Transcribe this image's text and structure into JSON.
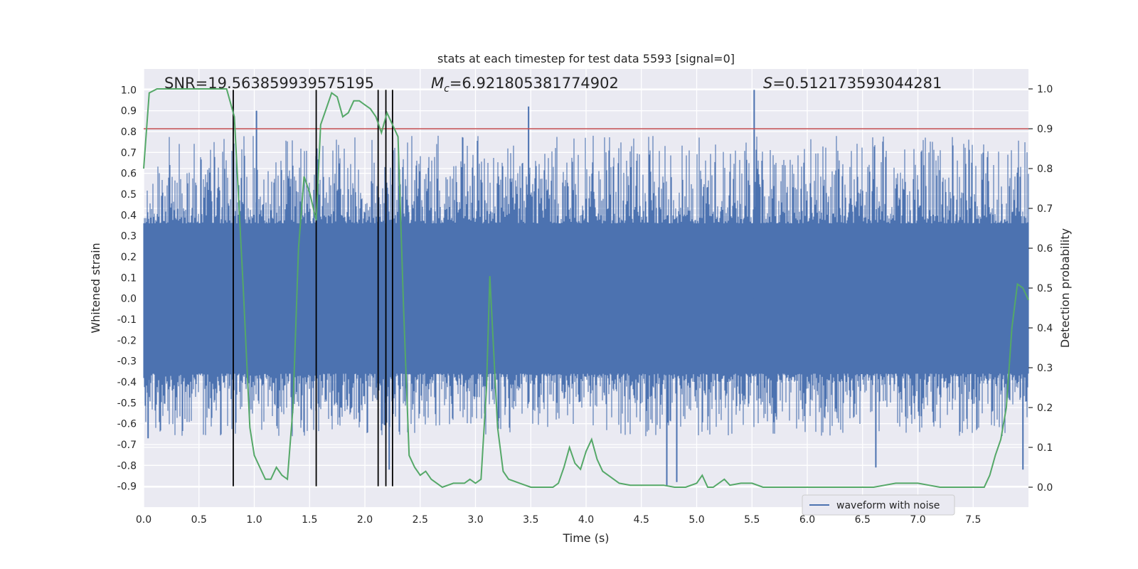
{
  "chart_data": {
    "type": "line",
    "title": "stats at each timestep for test data 5593 [signal=0]",
    "xlabel": "Time (s)",
    "ylabel": "Whitened strain",
    "ylabel_right": "Detection probability",
    "xlim": [
      0.0,
      8.0
    ],
    "ylim_left": [
      -1.0,
      1.1
    ],
    "ylim_right": [
      -0.05,
      1.05
    ],
    "x_ticks": [
      "0.0",
      "0.5",
      "1.0",
      "1.5",
      "2.0",
      "2.5",
      "3.0",
      "3.5",
      "4.0",
      "4.5",
      "5.0",
      "5.5",
      "6.0",
      "6.5",
      "7.0",
      "7.5"
    ],
    "y_ticks_left": [
      "-0.9",
      "-0.8",
      "-0.7",
      "-0.6",
      "-0.5",
      "-0.4",
      "-0.3",
      "-0.2",
      "-0.1",
      "0.0",
      "0.1",
      "0.2",
      "0.3",
      "0.4",
      "0.5",
      "0.6",
      "0.7",
      "0.8",
      "0.9",
      "1.0"
    ],
    "y_ticks_right": [
      "0.0",
      "0.1",
      "0.2",
      "0.3",
      "0.4",
      "0.5",
      "0.6",
      "0.7",
      "0.8",
      "0.9",
      "1.0"
    ],
    "grid": true,
    "legend": {
      "entries": [
        "waveform with noise"
      ],
      "placement": "lower-right"
    },
    "annotations": {
      "snr": "SNR=19.563859939575195",
      "mc_symbol": "M",
      "mc_sub": "c",
      "mc_value": "=6.921805381774902",
      "s_symbol": "S",
      "s_value": "=0.512173593044281"
    },
    "threshold_right": 0.9,
    "vertical_markers_x": [
      0.81,
      1.56,
      2.12,
      2.19,
      2.25
    ],
    "vertical_markers_ylim_left": [
      -0.9,
      1.0
    ],
    "series": [
      {
        "name": "waveform with noise",
        "axis": "left",
        "kind": "noise",
        "color": "#4c72b0",
        "band_low": -0.36,
        "band_high": 0.36,
        "peaks": [
          {
            "x": 1.02,
            "y": 0.9
          },
          {
            "x": 3.48,
            "y": 0.92
          },
          {
            "x": 5.52,
            "y": 1.0
          },
          {
            "x": 4.73,
            "y": -0.9
          },
          {
            "x": 2.22,
            "y": -0.82
          },
          {
            "x": 4.82,
            "y": -0.88
          },
          {
            "x": 6.62,
            "y": -0.81
          },
          {
            "x": 7.95,
            "y": -0.82
          },
          {
            "x": 0.04,
            "y": -0.67
          }
        ]
      },
      {
        "name": "Detection probability",
        "axis": "right",
        "color": "#55a868",
        "x": [
          0.0,
          0.05,
          0.12,
          0.2,
          0.4,
          0.6,
          0.75,
          0.82,
          0.9,
          0.96,
          1.0,
          1.05,
          1.1,
          1.15,
          1.2,
          1.25,
          1.3,
          1.35,
          1.4,
          1.45,
          1.5,
          1.56,
          1.6,
          1.65,
          1.7,
          1.75,
          1.8,
          1.85,
          1.9,
          1.95,
          2.0,
          2.05,
          2.1,
          2.15,
          2.2,
          2.25,
          2.3,
          2.35,
          2.4,
          2.45,
          2.5,
          2.55,
          2.6,
          2.65,
          2.7,
          2.8,
          2.9,
          2.95,
          3.0,
          3.05,
          3.1,
          3.13,
          3.2,
          3.25,
          3.3,
          3.35,
          3.4,
          3.45,
          3.5,
          3.55,
          3.6,
          3.65,
          3.7,
          3.75,
          3.8,
          3.85,
          3.9,
          3.95,
          4.0,
          4.05,
          4.1,
          4.15,
          4.2,
          4.3,
          4.4,
          4.5,
          4.6,
          4.7,
          4.8,
          4.9,
          5.0,
          5.05,
          5.1,
          5.15,
          5.25,
          5.3,
          5.4,
          5.5,
          5.6,
          5.8,
          6.0,
          6.2,
          6.4,
          6.6,
          6.7,
          6.8,
          6.9,
          7.0,
          7.1,
          7.2,
          7.3,
          7.4,
          7.5,
          7.6,
          7.65,
          7.7,
          7.75,
          7.8,
          7.85,
          7.9,
          7.95,
          8.0
        ],
        "y": [
          0.8,
          0.99,
          1.0,
          1.0,
          1.0,
          1.0,
          1.0,
          0.93,
          0.5,
          0.15,
          0.08,
          0.05,
          0.02,
          0.02,
          0.05,
          0.03,
          0.02,
          0.2,
          0.6,
          0.78,
          0.74,
          0.67,
          0.91,
          0.95,
          0.99,
          0.98,
          0.93,
          0.94,
          0.97,
          0.97,
          0.96,
          0.95,
          0.93,
          0.89,
          0.94,
          0.91,
          0.88,
          0.45,
          0.08,
          0.05,
          0.03,
          0.04,
          0.02,
          0.01,
          0.0,
          0.01,
          0.01,
          0.02,
          0.01,
          0.02,
          0.25,
          0.53,
          0.15,
          0.04,
          0.02,
          0.015,
          0.01,
          0.005,
          0.0,
          0.0,
          0.0,
          0.0,
          0.0,
          0.01,
          0.05,
          0.1,
          0.06,
          0.045,
          0.09,
          0.12,
          0.07,
          0.04,
          0.03,
          0.01,
          0.005,
          0.005,
          0.005,
          0.005,
          0.0,
          0.0,
          0.01,
          0.03,
          0.0,
          0.0,
          0.02,
          0.005,
          0.01,
          0.01,
          0.0,
          0.0,
          0.0,
          0.0,
          0.0,
          0.0,
          0.005,
          0.01,
          0.01,
          0.01,
          0.005,
          0.0,
          0.0,
          0.0,
          0.0,
          0.0,
          0.03,
          0.08,
          0.12,
          0.2,
          0.4,
          0.51,
          0.5,
          0.47
        ]
      }
    ]
  }
}
